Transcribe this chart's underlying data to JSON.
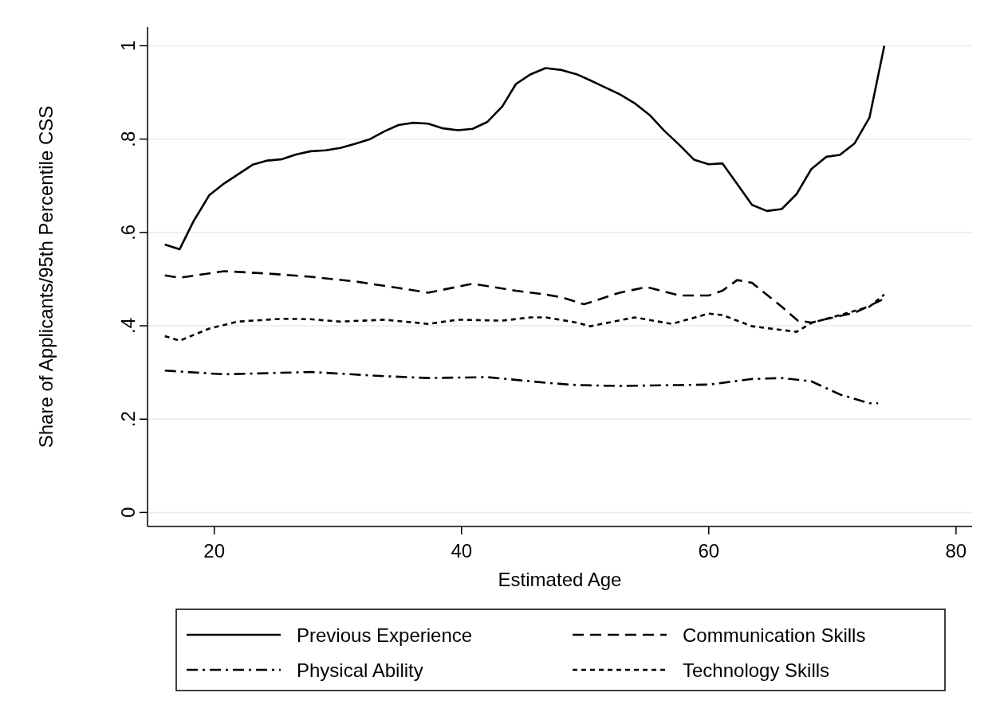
{
  "chart_data": {
    "type": "line",
    "xlabel": "Estimated Age",
    "ylabel": "Share of Applicants/95th Percentile CSS",
    "xlim": [
      14.6,
      81.3
    ],
    "xticks": [
      20,
      40,
      60,
      80
    ],
    "ylim": [
      -0.03,
      1.04
    ],
    "yticks": [
      {
        "value": 0,
        "label": "0"
      },
      {
        "value": 0.2,
        "label": ".2"
      },
      {
        "value": 0.4,
        "label": ".4"
      },
      {
        "value": 0.6,
        "label": ".6"
      },
      {
        "value": 0.8,
        "label": ".8"
      },
      {
        "value": 1,
        "label": "1"
      }
    ],
    "grid": "y",
    "legend": "bottom",
    "series": [
      {
        "name": "Previous Experience",
        "color": "#000000",
        "line_style": "solid",
        "x": [
          16.0,
          17.2,
          18.3,
          19.6,
          20.8,
          21.9,
          23.1,
          24.3,
          25.5,
          26.6,
          27.8,
          29.0,
          30.2,
          31.4,
          32.6,
          33.8,
          34.9,
          36.1,
          37.3,
          38.5,
          39.7,
          40.9,
          42.1,
          43.3,
          44.4,
          45.6,
          46.8,
          48.1,
          49.3,
          50.4,
          51.6,
          52.8,
          54.0,
          55.2,
          56.4,
          57.6,
          58.8,
          60.0,
          61.1,
          62.3,
          63.5,
          64.7,
          65.9,
          67.1,
          68.3,
          69.5,
          70.6,
          71.8,
          73.0,
          74.2
        ],
        "values": [
          0.574,
          0.564,
          0.623,
          0.68,
          0.705,
          0.724,
          0.745,
          0.754,
          0.757,
          0.767,
          0.774,
          0.776,
          0.781,
          0.79,
          0.8,
          0.817,
          0.83,
          0.835,
          0.833,
          0.823,
          0.819,
          0.822,
          0.837,
          0.87,
          0.918,
          0.939,
          0.952,
          0.948,
          0.939,
          0.926,
          0.911,
          0.896,
          0.877,
          0.852,
          0.818,
          0.788,
          0.756,
          0.746,
          0.748,
          0.704,
          0.659,
          0.646,
          0.65,
          0.682,
          0.736,
          0.762,
          0.766,
          0.791,
          0.846,
          1.0
        ]
      },
      {
        "name": "Communication Skills",
        "color": "#000000",
        "line_style": "dashed",
        "x": [
          16.0,
          17.2,
          20.8,
          24.3,
          27.8,
          31.4,
          34.9,
          37.3,
          40.9,
          44.4,
          46.8,
          48.1,
          49.9,
          52.8,
          55.0,
          57.6,
          60.0,
          61.1,
          62.3,
          63.5,
          65.9,
          67.2,
          68.3,
          70.6,
          71.8,
          74.2
        ],
        "values": [
          0.508,
          0.503,
          0.517,
          0.512,
          0.505,
          0.495,
          0.481,
          0.471,
          0.49,
          0.475,
          0.467,
          0.461,
          0.446,
          0.471,
          0.483,
          0.465,
          0.465,
          0.475,
          0.498,
          0.492,
          0.441,
          0.411,
          0.407,
          0.421,
          0.428,
          0.458
        ]
      },
      {
        "name": "Physical Ability",
        "color": "#000000",
        "line_style": "dashdot",
        "x": [
          16.0,
          20.8,
          27.8,
          33.8,
          37.3,
          42.1,
          46.8,
          49.3,
          52.8,
          57.6,
          60.0,
          63.5,
          65.9,
          68.3,
          70.6,
          73.0,
          73.7
        ],
        "values": [
          0.304,
          0.296,
          0.301,
          0.292,
          0.288,
          0.29,
          0.278,
          0.273,
          0.271,
          0.273,
          0.274,
          0.286,
          0.288,
          0.281,
          0.253,
          0.234,
          0.234
        ]
      },
      {
        "name": "Technology Skills",
        "color": "#000000",
        "line_style": "dotted",
        "x": [
          16.0,
          17.2,
          19.6,
          21.9,
          25.5,
          27.8,
          30.2,
          33.8,
          37.3,
          39.7,
          43.3,
          45.6,
          46.8,
          49.3,
          50.4,
          54.0,
          57.0,
          60.0,
          61.1,
          63.5,
          67.1,
          68.3,
          70.6,
          73.0,
          74.2
        ],
        "values": [
          0.378,
          0.368,
          0.394,
          0.409,
          0.415,
          0.414,
          0.409,
          0.413,
          0.404,
          0.413,
          0.411,
          0.418,
          0.418,
          0.407,
          0.399,
          0.418,
          0.404,
          0.426,
          0.423,
          0.399,
          0.387,
          0.406,
          0.423,
          0.441,
          0.467
        ]
      }
    ]
  }
}
